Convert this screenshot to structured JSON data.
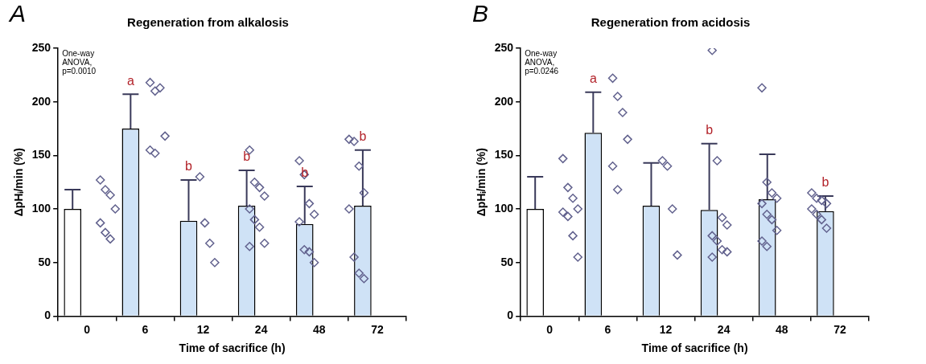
{
  "chart_data": [
    {
      "type": "bar",
      "panel_label": "A",
      "title": "Regeneration from alkalosis",
      "x_label": "Time of sacrifice (h)",
      "y_label": "ΔpHᵢ/min (%)",
      "annotation": [
        "One-way",
        "ANOVA,",
        "p=0.0010"
      ],
      "categories": [
        "0",
        "6",
        "12",
        "24",
        "48",
        "72"
      ],
      "ylim": [
        0,
        250
      ],
      "yticks": [
        0,
        50,
        100,
        150,
        200,
        250
      ],
      "grid": false,
      "series": [
        {
          "type": "bar",
          "values": [
            100,
            175,
            89,
            103,
            86,
            103
          ],
          "error": [
            18,
            32,
            38,
            33,
            35,
            52
          ],
          "colors": [
            "#ffffff",
            "#cfe2f6",
            "#cfe2f6",
            "#cfe2f6",
            "#cfe2f6",
            "#cfe2f6"
          ],
          "letters": [
            null,
            "a",
            "b",
            "b",
            "b",
            "b"
          ]
        },
        {
          "type": "scatter",
          "marker": "diamond",
          "color": "#62628e",
          "values": [
            [
              127,
              118,
              113,
              100,
              87,
              78,
              72
            ],
            [
              218,
              210,
              213,
              168,
              155,
              152
            ],
            [
              130,
              87,
              68,
              50
            ],
            [
              155,
              125,
              120,
              112,
              100,
              90,
              83,
              68,
              65
            ],
            [
              145,
              132,
              105,
              95,
              88,
              62,
              60,
              50
            ],
            [
              165,
              163,
              140,
              115,
              100,
              55,
              40,
              35
            ]
          ]
        }
      ]
    },
    {
      "type": "bar",
      "panel_label": "B",
      "title": "Regeneration from acidosis",
      "x_label": "Time of sacrifice (h)",
      "y_label": "ΔpHᵢ/min (%)",
      "annotation": [
        "One-way",
        "ANOVA,",
        "p=0.0246"
      ],
      "categories": [
        "0",
        "6",
        "12",
        "24",
        "48",
        "72"
      ],
      "ylim": [
        0,
        250
      ],
      "yticks": [
        0,
        50,
        100,
        150,
        200,
        250
      ],
      "grid": false,
      "series": [
        {
          "type": "bar",
          "values": [
            100,
            171,
            103,
            99,
            109,
            98
          ],
          "error": [
            30,
            38,
            40,
            62,
            42,
            14
          ],
          "colors": [
            "#ffffff",
            "#cfe2f6",
            "#cfe2f6",
            "#cfe2f6",
            "#cfe2f6",
            "#cfe2f6"
          ],
          "letters": [
            null,
            "a",
            null,
            "b",
            null,
            "b"
          ]
        },
        {
          "type": "scatter",
          "marker": "diamond",
          "color": "#62628e",
          "values": [
            [
              147,
              120,
              110,
              100,
              97,
              93,
              75,
              55
            ],
            [
              222,
              205,
              190,
              165,
              140,
              118
            ],
            [
              145,
              140,
              100,
              57
            ],
            [
              248,
              145,
              92,
              85,
              75,
              70,
              62,
              60,
              55
            ],
            [
              213,
              125,
              115,
              110,
              105,
              95,
              90,
              80,
              70,
              65
            ],
            [
              115,
              110,
              108,
              105,
              100,
              95,
              90,
              82
            ]
          ]
        }
      ]
    }
  ]
}
